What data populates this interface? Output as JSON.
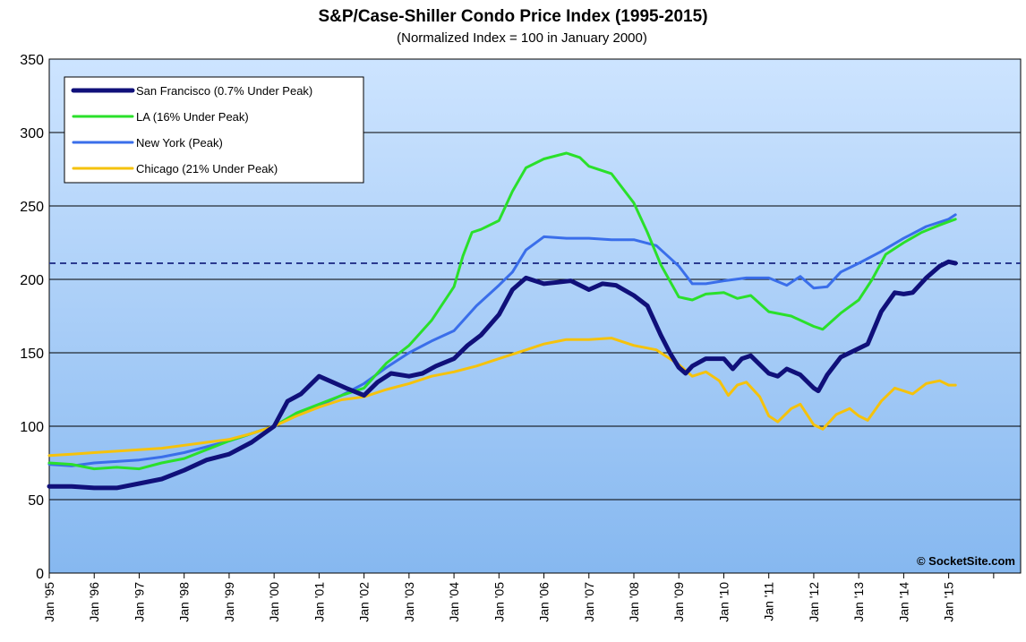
{
  "chart_data": {
    "type": "line",
    "title": "S&P/Case-Shiller Condo Price Index (1995-2015)",
    "subtitle": "(Normalized Index = 100 in January 2000)",
    "xlabel": "",
    "ylabel": "",
    "ylim": [
      0,
      350
    ],
    "yticks": [
      0,
      50,
      100,
      150,
      200,
      250,
      300,
      350
    ],
    "xlim": [
      1995,
      2016.6
    ],
    "xtick_labels": [
      "Jan '95",
      "Jan '96",
      "Jan '97",
      "Jan '98",
      "Jan '99",
      "Jan '00",
      "Jan '01",
      "Jan '02",
      "Jan '03",
      "Jan '04",
      "Jan '05",
      "Jan '06",
      "Jan '07",
      "Jan '08",
      "Jan '09",
      "Jan '10",
      "Jan '11",
      "Jan '12",
      "Jan '13",
      "Jan '14",
      "Jan '15"
    ],
    "grid": "horizontal",
    "legend_position": "top-left",
    "reference_line": {
      "y": 211,
      "style": "dashed",
      "color": "#2a3a8f"
    },
    "watermark": "© SocketSite.com",
    "series": [
      {
        "name": "San Francisco (0.7% Under Peak)",
        "color": "#10107a",
        "width": 5,
        "points": [
          [
            1995.0,
            59
          ],
          [
            1995.5,
            59
          ],
          [
            1996.0,
            58
          ],
          [
            1996.5,
            58
          ],
          [
            1997.0,
            61
          ],
          [
            1997.5,
            64
          ],
          [
            1998.0,
            70
          ],
          [
            1998.5,
            77
          ],
          [
            1999.0,
            81
          ],
          [
            1999.5,
            89
          ],
          [
            2000.0,
            100
          ],
          [
            2000.3,
            117
          ],
          [
            2000.6,
            122
          ],
          [
            2001.0,
            134
          ],
          [
            2001.3,
            130
          ],
          [
            2001.6,
            126
          ],
          [
            2002.0,
            121
          ],
          [
            2002.3,
            130
          ],
          [
            2002.6,
            136
          ],
          [
            2003.0,
            134
          ],
          [
            2003.3,
            136
          ],
          [
            2003.6,
            141
          ],
          [
            2004.0,
            146
          ],
          [
            2004.3,
            155
          ],
          [
            2004.6,
            162
          ],
          [
            2005.0,
            176
          ],
          [
            2005.3,
            193
          ],
          [
            2005.6,
            201
          ],
          [
            2006.0,
            197
          ],
          [
            2006.3,
            198
          ],
          [
            2006.6,
            199
          ],
          [
            2007.0,
            193
          ],
          [
            2007.3,
            197
          ],
          [
            2007.6,
            196
          ],
          [
            2008.0,
            189
          ],
          [
            2008.3,
            182
          ],
          [
            2008.6,
            162
          ],
          [
            2008.8,
            150
          ],
          [
            2009.0,
            140
          ],
          [
            2009.15,
            136
          ],
          [
            2009.3,
            141
          ],
          [
            2009.6,
            146
          ],
          [
            2010.0,
            146
          ],
          [
            2010.2,
            139
          ],
          [
            2010.4,
            146
          ],
          [
            2010.6,
            148
          ],
          [
            2011.0,
            136
          ],
          [
            2011.2,
            134
          ],
          [
            2011.4,
            139
          ],
          [
            2011.7,
            135
          ],
          [
            2012.0,
            126
          ],
          [
            2012.1,
            124
          ],
          [
            2012.3,
            135
          ],
          [
            2012.6,
            147
          ],
          [
            2013.0,
            153
          ],
          [
            2013.2,
            156
          ],
          [
            2013.5,
            178
          ],
          [
            2013.8,
            191
          ],
          [
            2014.0,
            190
          ],
          [
            2014.2,
            191
          ],
          [
            2014.5,
            201
          ],
          [
            2014.8,
            209
          ],
          [
            2015.0,
            212
          ],
          [
            2015.15,
            211
          ]
        ]
      },
      {
        "name": "LA (16% Under Peak)",
        "color": "#2ae02a",
        "width": 3,
        "points": [
          [
            1995.0,
            75
          ],
          [
            1995.5,
            74
          ],
          [
            1996.0,
            71
          ],
          [
            1996.5,
            72
          ],
          [
            1997.0,
            71
          ],
          [
            1997.5,
            75
          ],
          [
            1998.0,
            78
          ],
          [
            1998.5,
            84
          ],
          [
            1999.0,
            90
          ],
          [
            1999.5,
            95
          ],
          [
            2000.0,
            100
          ],
          [
            2000.5,
            109
          ],
          [
            2001.0,
            115
          ],
          [
            2001.5,
            121
          ],
          [
            2002.0,
            126
          ],
          [
            2002.5,
            143
          ],
          [
            2003.0,
            155
          ],
          [
            2003.5,
            172
          ],
          [
            2004.0,
            195
          ],
          [
            2004.2,
            216
          ],
          [
            2004.4,
            232
          ],
          [
            2004.6,
            234
          ],
          [
            2005.0,
            240
          ],
          [
            2005.3,
            260
          ],
          [
            2005.6,
            276
          ],
          [
            2006.0,
            282
          ],
          [
            2006.5,
            286
          ],
          [
            2006.8,
            283
          ],
          [
            2007.0,
            277
          ],
          [
            2007.5,
            272
          ],
          [
            2008.0,
            252
          ],
          [
            2008.3,
            232
          ],
          [
            2008.6,
            210
          ],
          [
            2009.0,
            188
          ],
          [
            2009.3,
            186
          ],
          [
            2009.6,
            190
          ],
          [
            2010.0,
            191
          ],
          [
            2010.3,
            187
          ],
          [
            2010.6,
            189
          ],
          [
            2011.0,
            178
          ],
          [
            2011.5,
            175
          ],
          [
            2012.0,
            168
          ],
          [
            2012.2,
            166
          ],
          [
            2012.6,
            177
          ],
          [
            2013.0,
            186
          ],
          [
            2013.3,
            200
          ],
          [
            2013.6,
            217
          ],
          [
            2014.0,
            225
          ],
          [
            2014.4,
            232
          ],
          [
            2014.8,
            237
          ],
          [
            2015.15,
            241
          ]
        ]
      },
      {
        "name": "New York (Peak)",
        "color": "#3a6eea",
        "width": 3,
        "points": [
          [
            1995.0,
            74
          ],
          [
            1995.5,
            73
          ],
          [
            1996.0,
            75
          ],
          [
            1996.5,
            76
          ],
          [
            1997.0,
            77
          ],
          [
            1997.5,
            79
          ],
          [
            1998.0,
            82
          ],
          [
            1998.5,
            86
          ],
          [
            1999.0,
            90
          ],
          [
            1999.5,
            95
          ],
          [
            2000.0,
            100
          ],
          [
            2000.5,
            108
          ],
          [
            2001.0,
            114
          ],
          [
            2001.5,
            121
          ],
          [
            2002.0,
            129
          ],
          [
            2002.5,
            140
          ],
          [
            2003.0,
            150
          ],
          [
            2003.5,
            158
          ],
          [
            2004.0,
            165
          ],
          [
            2004.5,
            182
          ],
          [
            2005.0,
            196
          ],
          [
            2005.3,
            205
          ],
          [
            2005.6,
            220
          ],
          [
            2006.0,
            229
          ],
          [
            2006.5,
            228
          ],
          [
            2007.0,
            228
          ],
          [
            2007.5,
            227
          ],
          [
            2008.0,
            227
          ],
          [
            2008.5,
            223
          ],
          [
            2009.0,
            209
          ],
          [
            2009.3,
            197
          ],
          [
            2009.6,
            197
          ],
          [
            2010.0,
            199
          ],
          [
            2010.5,
            201
          ],
          [
            2011.0,
            201
          ],
          [
            2011.4,
            196
          ],
          [
            2011.7,
            202
          ],
          [
            2012.0,
            194
          ],
          [
            2012.3,
            195
          ],
          [
            2012.6,
            205
          ],
          [
            2013.0,
            211
          ],
          [
            2013.5,
            219
          ],
          [
            2014.0,
            228
          ],
          [
            2014.5,
            236
          ],
          [
            2015.0,
            241
          ],
          [
            2015.15,
            244
          ]
        ]
      },
      {
        "name": "Chicago (21% Under Peak)",
        "color": "#f5c20c",
        "width": 3,
        "points": [
          [
            1995.0,
            80
          ],
          [
            1995.5,
            81
          ],
          [
            1996.0,
            82
          ],
          [
            1996.5,
            83
          ],
          [
            1997.0,
            84
          ],
          [
            1997.5,
            85
          ],
          [
            1998.0,
            87
          ],
          [
            1998.5,
            89
          ],
          [
            1999.0,
            91
          ],
          [
            1999.5,
            95
          ],
          [
            2000.0,
            100
          ],
          [
            2000.5,
            107
          ],
          [
            2001.0,
            113
          ],
          [
            2001.5,
            118
          ],
          [
            2002.0,
            120
          ],
          [
            2002.5,
            125
          ],
          [
            2003.0,
            129
          ],
          [
            2003.5,
            134
          ],
          [
            2004.0,
            137
          ],
          [
            2004.5,
            141
          ],
          [
            2005.0,
            146
          ],
          [
            2005.5,
            151
          ],
          [
            2006.0,
            156
          ],
          [
            2006.5,
            159
          ],
          [
            2007.0,
            159
          ],
          [
            2007.5,
            160
          ],
          [
            2008.0,
            155
          ],
          [
            2008.5,
            152
          ],
          [
            2009.0,
            142
          ],
          [
            2009.3,
            134
          ],
          [
            2009.6,
            137
          ],
          [
            2009.9,
            131
          ],
          [
            2010.1,
            121
          ],
          [
            2010.3,
            128
          ],
          [
            2010.5,
            130
          ],
          [
            2010.8,
            120
          ],
          [
            2011.0,
            107
          ],
          [
            2011.2,
            103
          ],
          [
            2011.5,
            112
          ],
          [
            2011.7,
            115
          ],
          [
            2012.0,
            101
          ],
          [
            2012.2,
            98
          ],
          [
            2012.5,
            108
          ],
          [
            2012.8,
            112
          ],
          [
            2013.0,
            107
          ],
          [
            2013.2,
            104
          ],
          [
            2013.5,
            117
          ],
          [
            2013.8,
            126
          ],
          [
            2014.0,
            124
          ],
          [
            2014.2,
            122
          ],
          [
            2014.5,
            129
          ],
          [
            2014.8,
            131
          ],
          [
            2015.0,
            128
          ],
          [
            2015.15,
            128
          ]
        ]
      }
    ]
  }
}
